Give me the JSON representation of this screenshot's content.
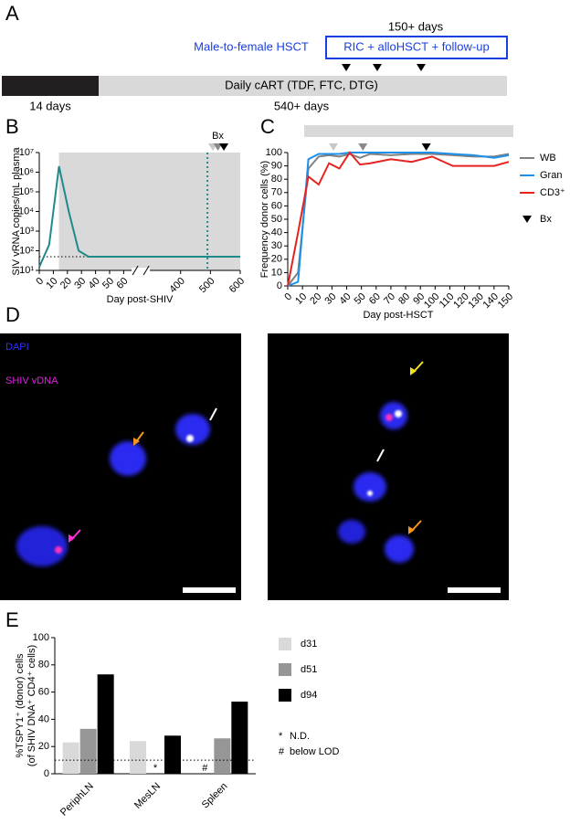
{
  "panel_a": {
    "letter": "A",
    "followup_duration": "150+ days",
    "hsct_label": "Male-to-female HSCT",
    "hsct_box": "RIC + alloHSCT + follow-up",
    "cart_label": "Daily cART (TDF, FTC, DTG)",
    "pre_duration": "14 days",
    "cart_duration": "540+ days"
  },
  "panel_d": {
    "letter": "D",
    "labels": [
      "DAPI",
      "SHIV vDNA"
    ]
  },
  "chart_data": [
    {
      "panel": "B",
      "type": "line",
      "xlabel": "Day post-SHIV",
      "ylabel": "SIV vRNA copies/mL plasma",
      "x": [
        0,
        7,
        14,
        21,
        28,
        35,
        60,
        400,
        500,
        600
      ],
      "values": [
        15,
        200,
        2000000,
        10000,
        100,
        50,
        50,
        50,
        50,
        50
      ],
      "color": "#1f8a8a",
      "log_scale": true,
      "ylim": [
        10,
        10000000
      ],
      "yticks": [
        {
          "value": 10,
          "label": "10¹"
        },
        {
          "value": 100,
          "label": "10²"
        },
        {
          "value": 1000,
          "label": "10³"
        },
        {
          "value": 10000,
          "label": "10⁴"
        },
        {
          "value": 100000,
          "label": "10⁵"
        },
        {
          "value": 1000000,
          "label": "10⁶"
        },
        {
          "value": 10000000,
          "label": "10⁷"
        }
      ],
      "xlim": [
        0,
        600
      ],
      "xticks": [
        0,
        10,
        20,
        30,
        40,
        50,
        60,
        400,
        500,
        600
      ],
      "x_break": [
        65,
        300
      ],
      "lod": 50,
      "cart_start": 14,
      "hsct_day": 490,
      "bx": {
        "label": "Bx",
        "days": [
          508,
          525,
          545
        ],
        "colors": [
          "#c8c8c8",
          "#8a8a8a",
          "#000000"
        ]
      }
    },
    {
      "panel": "C",
      "type": "line",
      "xlabel": "Day post-HSCT",
      "ylabel": "Frequency donor cells (%)",
      "x": [
        0,
        7,
        14,
        21,
        28,
        35,
        42,
        49,
        56,
        70,
        84,
        98,
        112,
        126,
        140,
        150
      ],
      "series": [
        {
          "name": "WB",
          "color": "#808080",
          "values": [
            0,
            10,
            88,
            97,
            98,
            97,
            99,
            96,
            99,
            98,
            99,
            99,
            98,
            97,
            97,
            99
          ]
        },
        {
          "name": "Gran",
          "color": "#1e90e8",
          "values": [
            0,
            3,
            95,
            99,
            99,
            99,
            100,
            100,
            100,
            100,
            100,
            100,
            99,
            98,
            96,
            98
          ]
        },
        {
          "name": "CD3⁺",
          "color": "#e8221e",
          "values": [
            0,
            40,
            82,
            76,
            92,
            88,
            100,
            91,
            92,
            95,
            93,
            97,
            90,
            90,
            90,
            93
          ]
        }
      ],
      "ylim": [
        0,
        100
      ],
      "yticks": [
        0,
        10,
        20,
        30,
        40,
        50,
        60,
        70,
        80,
        90,
        100
      ],
      "xlim": [
        0,
        150
      ],
      "xticks": [
        0,
        10,
        20,
        30,
        40,
        50,
        60,
        70,
        80,
        90,
        100,
        110,
        120,
        130,
        140,
        150
      ],
      "bx": {
        "label": "Bx",
        "days": [
          31,
          51,
          94
        ],
        "colors": [
          "#c8c8c8",
          "#8a8a8a",
          "#000000"
        ]
      }
    },
    {
      "panel": "E",
      "type": "bar",
      "ylabel": [
        "%TSPY1⁺ (donor) cells",
        "(of SHIV DNA⁺ CD4⁺ cells)"
      ],
      "categories": [
        "PeriphLN",
        "MesLN",
        "Spleen"
      ],
      "series": [
        {
          "name": "d31",
          "color": "#d9d9d9",
          "values": [
            23,
            24,
            null
          ]
        },
        {
          "name": "d51",
          "color": "#969696",
          "values": [
            33,
            null,
            26
          ]
        },
        {
          "name": "d94",
          "color": "#000000",
          "values": [
            73,
            28,
            53
          ]
        }
      ],
      "ylim": [
        0,
        100
      ],
      "yticks": [
        0,
        20,
        40,
        60,
        80,
        100
      ],
      "lod": 10,
      "notes": [
        {
          "category": 1,
          "series": 1,
          "symbol": "*",
          "text": "N.D."
        },
        {
          "category": 2,
          "series": 0,
          "symbol": "#",
          "text": "below LOD"
        }
      ]
    }
  ]
}
